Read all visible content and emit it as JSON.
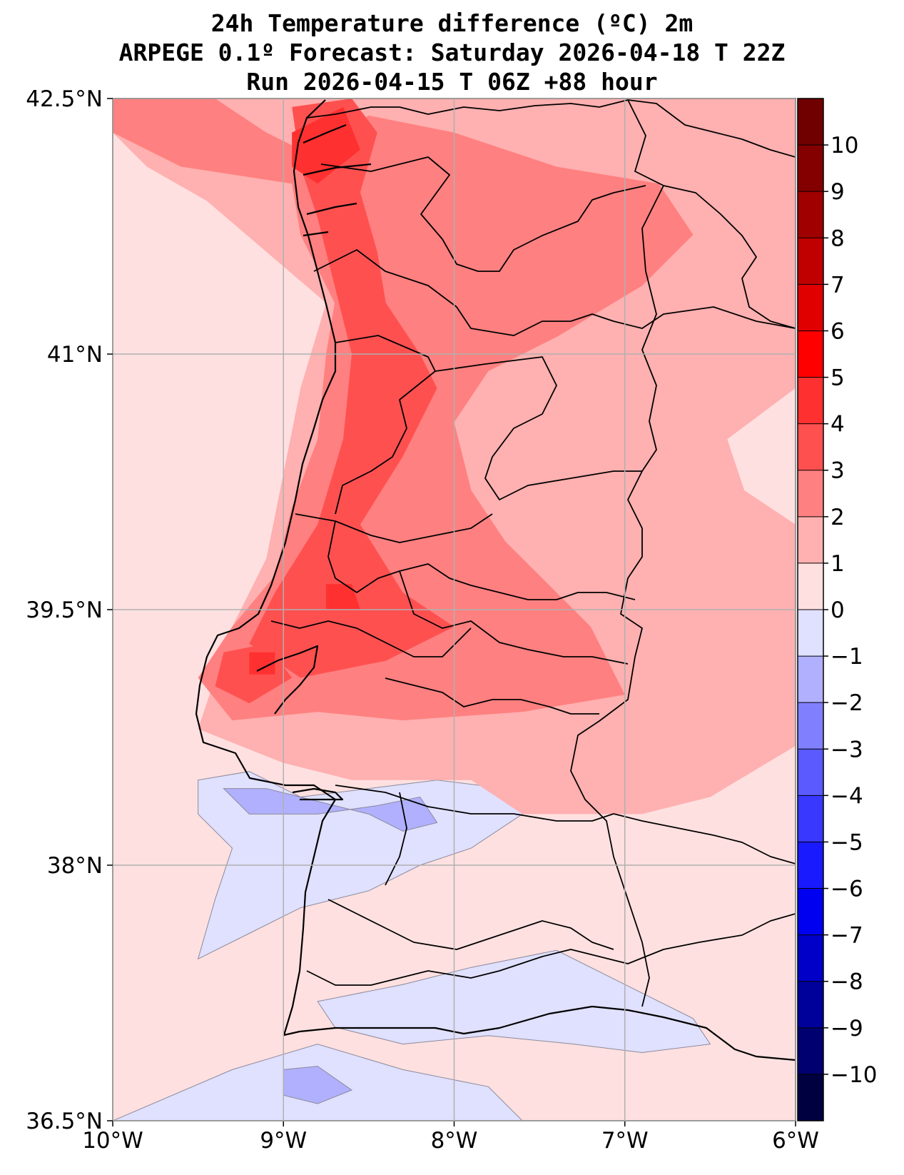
{
  "title": {
    "line1": "24h Temperature difference (ºC) 2m",
    "line2": "ARPEGE 0.1º Forecast: Saturday 2026-04-18 T 22Z",
    "line3": "Run 2026-04-15 T 06Z +88 hour"
  },
  "map": {
    "lon_range": [
      -10,
      -6
    ],
    "lat_range": [
      36.5,
      42.5
    ],
    "x_ticks": [
      {
        "value": -10,
        "label": "10°W"
      },
      {
        "value": -9,
        "label": "9°W"
      },
      {
        "value": -8,
        "label": "8°W"
      },
      {
        "value": -7,
        "label": "7°W"
      },
      {
        "value": -6,
        "label": "6°W"
      }
    ],
    "y_ticks": [
      {
        "value": 42.5,
        "label": "42.5°N"
      },
      {
        "value": 41,
        "label": "41°N"
      },
      {
        "value": 39.5,
        "label": "39.5°N"
      },
      {
        "value": 38,
        "label": "38°N"
      },
      {
        "value": 36.5,
        "label": "36.5°N"
      }
    ],
    "grid": true
  },
  "colorbar": {
    "levels": [
      -11,
      -10,
      -9,
      -8,
      -7,
      -6,
      -5,
      -4,
      -3,
      -2,
      -1,
      0,
      1,
      2,
      3,
      4,
      5,
      6,
      7,
      8,
      9,
      10,
      11
    ],
    "colors": [
      "#000040",
      "#000070",
      "#00009a",
      "#0000c8",
      "#0000f0",
      "#1a1aff",
      "#3838ff",
      "#5a5aff",
      "#8080ff",
      "#b0b0ff",
      "#e0e0ff",
      "#ffe0e0",
      "#ffb0b0",
      "#ff8080",
      "#ff5050",
      "#ff3030",
      "#ff0000",
      "#e00000",
      "#c00000",
      "#a00000",
      "#840000",
      "#700000"
    ],
    "labels": [
      "−10",
      "−9",
      "−8",
      "−7",
      "−6",
      "−5",
      "−4",
      "−3",
      "−2",
      "−1",
      "0",
      "1",
      "2",
      "3",
      "4",
      "5",
      "6",
      "7",
      "8",
      "9",
      "10"
    ],
    "label_values": [
      -10,
      -9,
      -8,
      -7,
      -6,
      -5,
      -4,
      -3,
      -2,
      -1,
      0,
      1,
      2,
      3,
      4,
      5,
      6,
      7,
      8,
      9,
      10
    ]
  },
  "fields": [
    {
      "level": 0,
      "color": "#ffe0e0",
      "lonlat": [
        [
          -10,
          42.5
        ],
        [
          -6,
          42.5
        ],
        [
          -6,
          36.5
        ],
        [
          -10,
          36.5
        ]
      ]
    },
    {
      "level": -1,
      "color": "#e0e0ff",
      "lonlat": [
        [
          -9.5,
          38.5
        ],
        [
          -9.2,
          38.55
        ],
        [
          -8.9,
          38.4
        ],
        [
          -8.5,
          38.45
        ],
        [
          -8.1,
          38.5
        ],
        [
          -7.7,
          38.45
        ],
        [
          -7.6,
          38.3
        ],
        [
          -7.9,
          38.1
        ],
        [
          -8.2,
          38.0
        ],
        [
          -8.5,
          37.85
        ],
        [
          -8.9,
          37.75
        ],
        [
          -9.2,
          37.6
        ],
        [
          -9.5,
          37.45
        ],
        [
          -9.4,
          37.8
        ],
        [
          -9.3,
          38.1
        ],
        [
          -9.5,
          38.3
        ]
      ]
    },
    {
      "level": -1,
      "color": "#e0e0ff",
      "lonlat": [
        [
          -8.8,
          37.2
        ],
        [
          -8.3,
          37.3
        ],
        [
          -7.9,
          37.4
        ],
        [
          -7.4,
          37.5
        ],
        [
          -7.0,
          37.3
        ],
        [
          -6.6,
          37.1
        ],
        [
          -6.5,
          36.95
        ],
        [
          -6.9,
          36.9
        ],
        [
          -7.3,
          36.95
        ],
        [
          -7.8,
          37.0
        ],
        [
          -8.3,
          36.95
        ],
        [
          -8.7,
          37.05
        ]
      ]
    },
    {
      "level": -1,
      "color": "#e0e0ff",
      "lonlat": [
        [
          -10,
          36.5
        ],
        [
          -9.3,
          36.8
        ],
        [
          -8.8,
          36.95
        ],
        [
          -8.3,
          36.8
        ],
        [
          -7.8,
          36.7
        ],
        [
          -7.6,
          36.5
        ]
      ]
    },
    {
      "level": -2,
      "color": "#b0b0ff",
      "lonlat": [
        [
          -9.35,
          38.45
        ],
        [
          -9.1,
          38.45
        ],
        [
          -8.7,
          38.35
        ],
        [
          -8.5,
          38.3
        ],
        [
          -8.3,
          38.2
        ],
        [
          -8.1,
          38.25
        ],
        [
          -8.2,
          38.4
        ],
        [
          -8.45,
          38.35
        ],
        [
          -8.8,
          38.3
        ],
        [
          -9.2,
          38.3
        ]
      ]
    },
    {
      "level": -2,
      "color": "#b0b0ff",
      "lonlat": [
        [
          -9.0,
          36.8
        ],
        [
          -8.8,
          36.82
        ],
        [
          -8.6,
          36.68
        ],
        [
          -8.8,
          36.6
        ],
        [
          -9.0,
          36.65
        ]
      ]
    },
    {
      "level": 1,
      "color": "#ffb0b0",
      "lonlat": [
        [
          -10,
          42.5
        ],
        [
          -6,
          42.5
        ],
        [
          -6,
          40.8
        ],
        [
          -6.4,
          40.5
        ],
        [
          -6.3,
          40.2
        ],
        [
          -6,
          40.0
        ],
        [
          -6,
          38.7
        ],
        [
          -6.5,
          38.4
        ],
        [
          -6.9,
          38.3
        ],
        [
          -7.6,
          38.3
        ],
        [
          -7.9,
          38.5
        ],
        [
          -8.6,
          38.5
        ],
        [
          -9.0,
          38.6
        ],
        [
          -9.5,
          38.8
        ],
        [
          -9.3,
          39.4
        ],
        [
          -9.1,
          39.8
        ],
        [
          -9.0,
          40.3
        ],
        [
          -8.9,
          40.8
        ],
        [
          -8.75,
          41.3
        ],
        [
          -9.1,
          41.6
        ],
        [
          -9.45,
          41.9
        ],
        [
          -9.8,
          42.1
        ],
        [
          -10,
          42.3
        ]
      ]
    },
    {
      "level": 2,
      "color": "#ff8080",
      "lonlat": [
        [
          -10,
          42.5
        ],
        [
          -9.4,
          42.5
        ],
        [
          -9.1,
          42.3
        ],
        [
          -8.9,
          42.2
        ],
        [
          -8.5,
          42.4
        ],
        [
          -8.0,
          42.3
        ],
        [
          -7.4,
          42.1
        ],
        [
          -6.8,
          42.0
        ],
        [
          -6.6,
          41.7
        ],
        [
          -6.9,
          41.4
        ],
        [
          -7.4,
          41.1
        ],
        [
          -7.8,
          40.9
        ],
        [
          -8.0,
          40.6
        ],
        [
          -7.9,
          40.2
        ],
        [
          -7.7,
          39.9
        ],
        [
          -7.4,
          39.6
        ],
        [
          -7.2,
          39.4
        ],
        [
          -7.0,
          39.0
        ],
        [
          -7.6,
          38.9
        ],
        [
          -8.3,
          38.85
        ],
        [
          -8.8,
          38.9
        ],
        [
          -9.3,
          38.85
        ],
        [
          -9.5,
          39.1
        ],
        [
          -9.3,
          39.4
        ],
        [
          -9.05,
          39.7
        ],
        [
          -8.95,
          40.1
        ],
        [
          -8.8,
          40.5
        ],
        [
          -8.75,
          41.0
        ],
        [
          -8.7,
          41.3
        ],
        [
          -8.9,
          41.7
        ],
        [
          -8.95,
          42.0
        ],
        [
          -9.6,
          42.1
        ],
        [
          -10,
          42.3
        ]
      ]
    },
    {
      "level": 3,
      "color": "#ff5050",
      "lonlat": [
        [
          -8.95,
          42.45
        ],
        [
          -8.6,
          42.5
        ],
        [
          -8.45,
          42.3
        ],
        [
          -8.55,
          41.95
        ],
        [
          -8.45,
          41.6
        ],
        [
          -8.4,
          41.3
        ],
        [
          -8.2,
          41.0
        ],
        [
          -8.1,
          40.8
        ],
        [
          -8.3,
          40.4
        ],
        [
          -8.55,
          40.0
        ],
        [
          -8.3,
          39.6
        ],
        [
          -8.0,
          39.4
        ],
        [
          -8.4,
          39.2
        ],
        [
          -8.9,
          39.1
        ],
        [
          -9.2,
          39.3
        ],
        [
          -9.05,
          39.6
        ],
        [
          -8.8,
          40.0
        ],
        [
          -8.65,
          40.5
        ],
        [
          -8.6,
          41.0
        ],
        [
          -8.7,
          41.4
        ],
        [
          -8.8,
          41.8
        ],
        [
          -8.9,
          42.1
        ]
      ]
    },
    {
      "level": 3,
      "color": "#ff5050",
      "lonlat": [
        [
          -9.35,
          39.25
        ],
        [
          -9.1,
          39.3
        ],
        [
          -8.95,
          39.1
        ],
        [
          -9.2,
          38.95
        ],
        [
          -9.4,
          39.05
        ]
      ]
    },
    {
      "level": 4,
      "color": "#ff3030",
      "lonlat": [
        [
          -8.95,
          42.3
        ],
        [
          -8.65,
          42.45
        ],
        [
          -8.55,
          42.2
        ],
        [
          -8.8,
          42.0
        ],
        [
          -8.95,
          42.1
        ]
      ]
    },
    {
      "level": 4,
      "color": "#ff3030",
      "lonlat": [
        [
          -8.75,
          39.65
        ],
        [
          -8.6,
          39.65
        ],
        [
          -8.55,
          39.5
        ],
        [
          -8.75,
          39.5
        ]
      ]
    },
    {
      "level": 4,
      "color": "#ff3030",
      "lonlat": [
        [
          -9.2,
          39.25
        ],
        [
          -9.05,
          39.25
        ],
        [
          -9.05,
          39.12
        ],
        [
          -9.2,
          39.12
        ]
      ]
    }
  ]
}
